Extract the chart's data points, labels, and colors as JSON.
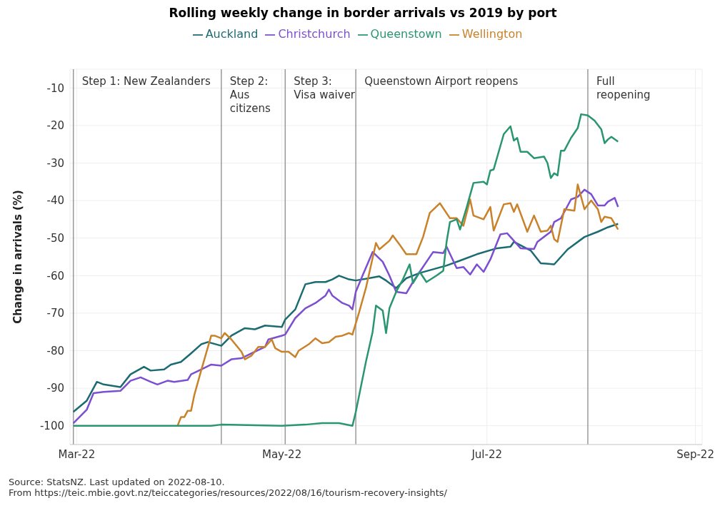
{
  "chart_data": {
    "type": "line",
    "title": "Rolling weekly change in border arrivals vs 2019 by port",
    "ylabel": "Change in arrivals (%)",
    "legend": "top",
    "grid": true,
    "xlim": [
      "2022-02-27",
      "2022-09-03"
    ],
    "xticks": [
      {
        "value": "2022-03-01",
        "label": "Mar-22"
      },
      {
        "value": "2022-05-01",
        "label": "May-22"
      },
      {
        "value": "2022-07-01",
        "label": "Jul-22"
      },
      {
        "value": "2022-09-01",
        "label": "Sep-22"
      }
    ],
    "ylim": [
      -105,
      -5
    ],
    "yticks": [
      -100,
      -90,
      -80,
      -70,
      -60,
      -50,
      -40,
      -30,
      -20,
      -10
    ],
    "ref_lines": [
      {
        "axis": "x",
        "value": "2022-02-28",
        "label": "Step 1: New Zealanders",
        "color": "#999999"
      },
      {
        "axis": "x",
        "value": "2022-04-13",
        "label": "Step 2:\nAus\ncitizens",
        "color": "#999999"
      },
      {
        "axis": "x",
        "value": "2022-05-02",
        "label": "Step 3:\nVisa waiver",
        "color": "#999999"
      },
      {
        "axis": "x",
        "value": "2022-05-23",
        "label": "Queenstown Airport reopens",
        "color": "#999999"
      },
      {
        "axis": "x",
        "value": "2022-07-31",
        "label": "Full\nreopening",
        "color": "#999999"
      }
    ],
    "series": [
      {
        "name": "Auckland",
        "color": "#1b6b72",
        "x": [
          "2022-02-28",
          "2022-03-04",
          "2022-03-07",
          "2022-03-09",
          "2022-03-14",
          "2022-03-17",
          "2022-03-21",
          "2022-03-23",
          "2022-03-27",
          "2022-03-29",
          "2022-04-01",
          "2022-04-04",
          "2022-04-07",
          "2022-04-09",
          "2022-04-13",
          "2022-04-16",
          "2022-04-20",
          "2022-04-23",
          "2022-04-26",
          "2022-05-01",
          "2022-05-02",
          "2022-05-05",
          "2022-05-08",
          "2022-05-11",
          "2022-05-14",
          "2022-05-16",
          "2022-05-18",
          "2022-05-21",
          "2022-05-23",
          "2022-05-30",
          "2022-06-01",
          "2022-06-04",
          "2022-06-07",
          "2022-06-11",
          "2022-06-19",
          "2022-06-23",
          "2022-06-28",
          "2022-07-04",
          "2022-07-08",
          "2022-07-09",
          "2022-07-14",
          "2022-07-17",
          "2022-07-21",
          "2022-07-25",
          "2022-07-30",
          "2022-08-03",
          "2022-08-06",
          "2022-08-09"
        ],
        "values": [
          -96.3,
          -93.3,
          -88.3,
          -89,
          -89.7,
          -86.3,
          -84.3,
          -85.3,
          -85,
          -83.7,
          -83,
          -80.7,
          -78.3,
          -77.7,
          -78.7,
          -76,
          -74,
          -74.3,
          -73.3,
          -73.7,
          -71.7,
          -69,
          -62.3,
          -61.7,
          -61.7,
          -61,
          -60,
          -61,
          -61.3,
          -60.2,
          -61.3,
          -63.3,
          -60.7,
          -59.3,
          -57.3,
          -56,
          -54.3,
          -52.7,
          -52.3,
          -51,
          -53.3,
          -56.7,
          -57,
          -53,
          -49.7,
          -48.3,
          -47.1,
          -46.2
        ]
      },
      {
        "name": "Christchurch",
        "color": "#7b4fd0",
        "x": [
          "2022-02-28",
          "2022-03-04",
          "2022-03-06",
          "2022-03-09",
          "2022-03-14",
          "2022-03-17",
          "2022-03-20",
          "2022-03-23",
          "2022-03-25",
          "2022-03-28",
          "2022-03-30",
          "2022-04-03",
          "2022-04-04",
          "2022-04-07",
          "2022-04-10",
          "2022-04-13",
          "2022-04-16",
          "2022-04-19",
          "2022-04-22",
          "2022-04-26",
          "2022-04-27",
          "2022-05-01",
          "2022-05-02",
          "2022-05-05",
          "2022-05-08",
          "2022-05-11",
          "2022-05-14",
          "2022-05-15",
          "2022-05-16",
          "2022-05-19",
          "2022-05-21",
          "2022-05-22",
          "2022-05-23",
          "2022-05-25",
          "2022-05-28",
          "2022-05-31",
          "2022-06-02",
          "2022-06-04",
          "2022-06-07",
          "2022-06-09",
          "2022-06-11",
          "2022-06-15",
          "2022-06-18",
          "2022-06-19",
          "2022-06-22",
          "2022-06-24",
          "2022-06-26",
          "2022-06-28",
          "2022-06-30",
          "2022-07-02",
          "2022-07-05",
          "2022-07-07",
          "2022-07-09",
          "2022-07-11",
          "2022-07-15",
          "2022-07-16",
          "2022-07-20",
          "2022-07-21",
          "2022-07-23",
          "2022-07-26",
          "2022-07-28",
          "2022-07-30",
          "2022-08-01",
          "2022-08-03",
          "2022-08-05",
          "2022-08-06",
          "2022-08-08",
          "2022-08-09"
        ],
        "values": [
          -99.3,
          -95.7,
          -91.3,
          -91,
          -90.7,
          -88,
          -87.1,
          -88.3,
          -89,
          -88,
          -88.3,
          -87.8,
          -86.3,
          -85,
          -83.7,
          -84,
          -82.3,
          -82,
          -80.7,
          -79,
          -77,
          -76,
          -75.7,
          -71.3,
          -68.7,
          -67.3,
          -65.3,
          -63.7,
          -65.3,
          -67.3,
          -68,
          -69,
          -64.3,
          -60,
          -53.7,
          -56.3,
          -60,
          -64.3,
          -64.7,
          -61.7,
          -59,
          -53.7,
          -54,
          -52.3,
          -58,
          -57.7,
          -59.7,
          -57,
          -59,
          -55.7,
          -49,
          -48.7,
          -50.7,
          -52.7,
          -52.9,
          -51,
          -48.3,
          -45.7,
          -44.7,
          -39.7,
          -39,
          -37.1,
          -38.3,
          -41.3,
          -41.3,
          -40.3,
          -39.3,
          -41.7
        ]
      },
      {
        "name": "Wellington",
        "color": "#c9822a",
        "x": [
          "2022-03-31",
          "2022-04-01",
          "2022-04-02",
          "2022-04-03",
          "2022-04-04",
          "2022-04-05",
          "2022-04-07",
          "2022-04-10",
          "2022-04-11",
          "2022-04-13",
          "2022-04-14",
          "2022-04-16",
          "2022-04-19",
          "2022-04-20",
          "2022-04-22",
          "2022-04-24",
          "2022-04-26",
          "2022-04-28",
          "2022-04-29",
          "2022-05-01",
          "2022-05-03",
          "2022-05-05",
          "2022-05-06",
          "2022-05-09",
          "2022-05-11",
          "2022-05-13",
          "2022-05-15",
          "2022-05-17",
          "2022-05-19",
          "2022-05-21",
          "2022-05-22",
          "2022-05-24",
          "2022-05-26",
          "2022-05-29",
          "2022-05-30",
          "2022-06-02",
          "2022-06-03",
          "2022-06-05",
          "2022-06-07",
          "2022-06-10",
          "2022-06-12",
          "2022-06-14",
          "2022-06-17",
          "2022-06-20",
          "2022-06-22",
          "2022-06-24",
          "2022-06-26",
          "2022-06-27",
          "2022-06-30",
          "2022-07-02",
          "2022-07-03",
          "2022-07-06",
          "2022-07-08",
          "2022-07-09",
          "2022-07-10",
          "2022-07-13",
          "2022-07-15",
          "2022-07-17",
          "2022-07-19",
          "2022-07-20",
          "2022-07-21",
          "2022-07-22",
          "2022-07-24",
          "2022-07-27",
          "2022-07-28",
          "2022-07-30",
          "2022-08-01",
          "2022-08-03",
          "2022-08-04",
          "2022-08-05",
          "2022-08-07",
          "2022-08-09"
        ],
        "values": [
          -100,
          -97.7,
          -97.7,
          -96,
          -96,
          -91.7,
          -85.3,
          -76,
          -76,
          -76.7,
          -75.3,
          -77,
          -80.3,
          -82.3,
          -81.3,
          -79,
          -79,
          -77,
          -79.3,
          -80.3,
          -80.3,
          -81.7,
          -80,
          -78.3,
          -76.7,
          -78,
          -77.7,
          -76.3,
          -76,
          -75.3,
          -75.7,
          -69.7,
          -63.3,
          -51.3,
          -53,
          -50.7,
          -49.3,
          -51.7,
          -54.3,
          -54.3,
          -49.7,
          -43.3,
          -40.7,
          -44.7,
          -44.7,
          -46.7,
          -39.7,
          -44,
          -45,
          -41.7,
          -48,
          -41,
          -40.7,
          -43,
          -41,
          -48.3,
          -44,
          -48.3,
          -48,
          -46.7,
          -50.3,
          -51,
          -42.3,
          -42.7,
          -35.7,
          -42.3,
          -40,
          -42.3,
          -45.7,
          -44.3,
          -44.7,
          -47.7
        ]
      },
      {
        "name": "Queenstown",
        "color": "#2a9670",
        "x": [
          "2022-02-28",
          "2022-04-10",
          "2022-04-13",
          "2022-05-01",
          "2022-05-08",
          "2022-05-13",
          "2022-05-18",
          "2022-05-22",
          "2022-05-23",
          "2022-05-26",
          "2022-05-28",
          "2022-05-29",
          "2022-05-31",
          "2022-06-01",
          "2022-06-02",
          "2022-06-04",
          "2022-06-06",
          "2022-06-08",
          "2022-06-09",
          "2022-06-11",
          "2022-06-13",
          "2022-06-16",
          "2022-06-18",
          "2022-06-19",
          "2022-06-20",
          "2022-06-22",
          "2022-06-23",
          "2022-06-25",
          "2022-06-27",
          "2022-06-30",
          "2022-07-01",
          "2022-07-02",
          "2022-07-03",
          "2022-07-06",
          "2022-07-08",
          "2022-07-09",
          "2022-07-10",
          "2022-07-11",
          "2022-07-13",
          "2022-07-15",
          "2022-07-18",
          "2022-07-19",
          "2022-07-20",
          "2022-07-21",
          "2022-07-22",
          "2022-07-23",
          "2022-07-24",
          "2022-07-26",
          "2022-07-28",
          "2022-07-29",
          "2022-07-31",
          "2022-08-02",
          "2022-08-04",
          "2022-08-05",
          "2022-08-06",
          "2022-08-07",
          "2022-08-09"
        ],
        "values": [
          -100,
          -100,
          -99.7,
          -100,
          -99.7,
          -99.3,
          -99.3,
          -100,
          -96.3,
          -83,
          -75,
          -68,
          -69.3,
          -75.3,
          -68.7,
          -64.3,
          -61,
          -57,
          -62,
          -59,
          -61.7,
          -60,
          -58.7,
          -51,
          -45.7,
          -45,
          -47.7,
          -41.7,
          -35.3,
          -35,
          -35.7,
          -32,
          -31.7,
          -22.3,
          -20.2,
          -24,
          -23.3,
          -27,
          -27,
          -28.7,
          -28.3,
          -30,
          -34,
          -32.7,
          -33.3,
          -26.7,
          -26.7,
          -23.3,
          -20.7,
          -17,
          -17.3,
          -18.7,
          -21,
          -24.7,
          -23.7,
          -23,
          -24.3
        ]
      }
    ],
    "annotations": [
      "Source: StatsNZ. Last updated on 2022-08-10.",
      "From https://teic.mbie.govt.nz/teiccategories/resources/2022/08/16/tourism-recovery-insights/"
    ]
  }
}
